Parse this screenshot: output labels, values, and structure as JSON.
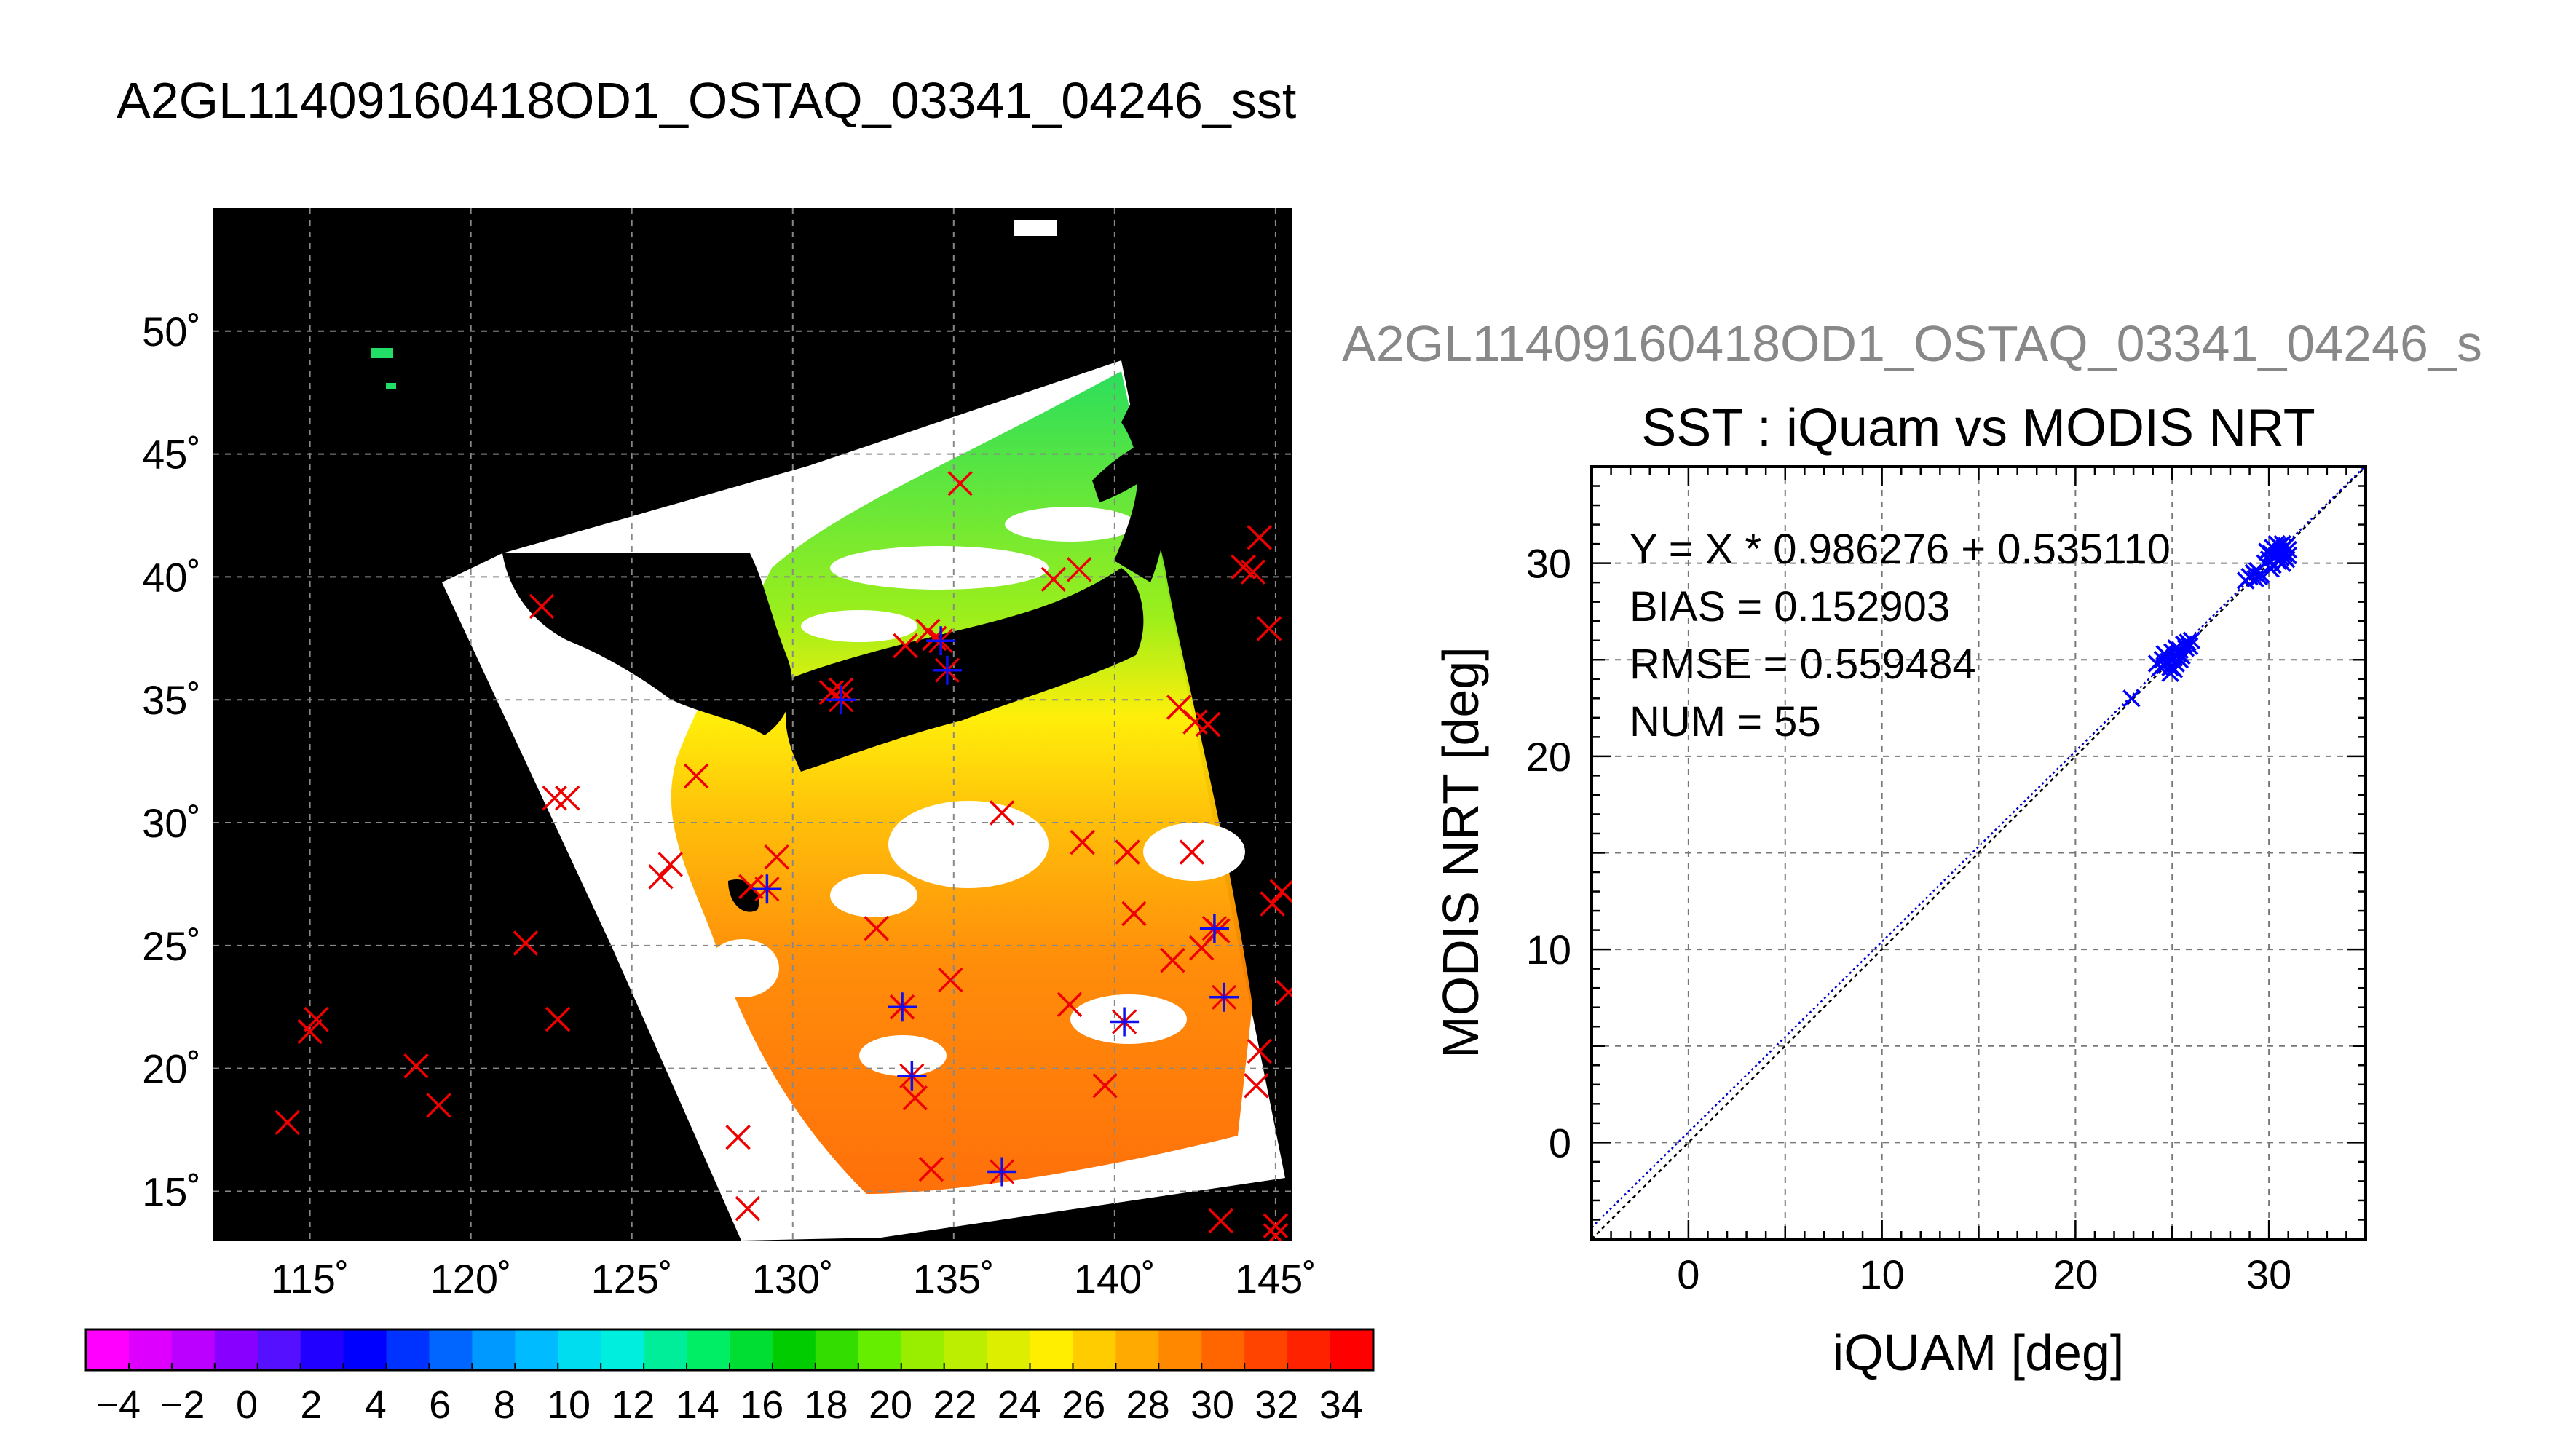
{
  "figure": {
    "title": "A2GL11409160418OD1_OSTAQ_03341_04246_sst",
    "subtitle": "A2GL11409160418OD1_OSTAQ_03341_04246_s"
  },
  "map": {
    "lon_ticks": [
      115,
      120,
      125,
      130,
      135,
      140,
      145
    ],
    "lat_ticks": [
      50,
      45,
      40,
      35,
      30,
      25,
      20,
      15
    ],
    "lon_labels": [
      "115˚",
      "120˚",
      "125˚",
      "130˚",
      "135˚",
      "140˚",
      "145˚"
    ],
    "lat_labels": [
      "50˚",
      "45˚",
      "40˚",
      "35˚",
      "30˚",
      "25˚",
      "20˚",
      "15˚"
    ],
    "lon_range": [
      112,
      145.5
    ],
    "lat_range": [
      13,
      55
    ],
    "background": "#000000",
    "swath_color": "#ffffff",
    "ocean_fill_gradient": [
      "#33ee33",
      "#99ee11",
      "#ffee00",
      "#ffbb00",
      "#ff8800",
      "#ff6600"
    ],
    "matchups_red": [
      [
        114.3,
        17.8
      ],
      [
        115.0,
        21.5
      ],
      [
        115.2,
        22.0
      ],
      [
        118.3,
        20.1
      ],
      [
        119.0,
        18.5
      ],
      [
        121.7,
        25.1
      ],
      [
        122.7,
        22.0
      ],
      [
        122.6,
        31.0
      ],
      [
        123.0,
        31.0
      ],
      [
        125.9,
        27.8
      ],
      [
        126.2,
        28.3
      ],
      [
        128.3,
        17.2
      ],
      [
        128.6,
        14.3
      ],
      [
        128.7,
        27.4
      ],
      [
        129.5,
        28.6
      ],
      [
        131.2,
        35.3
      ],
      [
        131.5,
        35.4
      ],
      [
        132.6,
        25.7
      ],
      [
        133.4,
        22.5
      ],
      [
        133.5,
        37.2
      ],
      [
        133.8,
        18.8
      ],
      [
        134.2,
        37.8
      ],
      [
        134.4,
        37.5
      ],
      [
        134.9,
        23.6
      ],
      [
        134.3,
        15.9
      ],
      [
        135.2,
        43.8
      ],
      [
        136.5,
        30.4
      ],
      [
        138.1,
        39.9
      ],
      [
        138.6,
        22.6
      ],
      [
        138.9,
        40.3
      ],
      [
        139.0,
        29.2
      ],
      [
        139.7,
        19.3
      ],
      [
        140.4,
        28.8
      ],
      [
        140.6,
        26.3
      ],
      [
        141.8,
        24.4
      ],
      [
        142.0,
        34.7
      ],
      [
        142.4,
        28.8
      ],
      [
        142.7,
        24.9
      ],
      [
        143.2,
        25.6
      ],
      [
        143.3,
        13.8
      ],
      [
        144.0,
        40.4
      ],
      [
        144.3,
        40.2
      ],
      [
        144.5,
        41.6
      ],
      [
        144.8,
        37.9
      ],
      [
        144.9,
        26.7
      ],
      [
        145.2,
        27.2
      ],
      [
        145.4,
        23.1
      ],
      [
        144.4,
        19.3
      ],
      [
        144.5,
        20.7
      ],
      [
        145.0,
        13.6
      ],
      [
        145.0,
        13.2
      ],
      [
        142.5,
        34.1
      ],
      [
        142.9,
        34.0
      ],
      [
        127.0,
        31.9
      ],
      [
        122.2,
        38.8
      ]
    ],
    "matchups_blue": [
      [
        129.2,
        27.3
      ],
      [
        131.5,
        35.0
      ],
      [
        134.8,
        36.2
      ],
      [
        134.6,
        37.4
      ],
      [
        133.4,
        22.5
      ],
      [
        133.7,
        19.7
      ],
      [
        136.5,
        15.8
      ],
      [
        140.3,
        21.9
      ],
      [
        143.1,
        25.7
      ],
      [
        143.4,
        22.9
      ]
    ]
  },
  "colorbar": {
    "tick_labels": [
      "−4",
      "−2",
      "0",
      "2",
      "4",
      "6",
      "8",
      "10",
      "12",
      "14",
      "16",
      "18",
      "20",
      "22",
      "24",
      "26",
      "28",
      "30",
      "32",
      "34"
    ],
    "range": [
      -5,
      35
    ],
    "colors": [
      "#ff00ff",
      "#dd00ff",
      "#bb00ff",
      "#8800ff",
      "#5511ff",
      "#2200ff",
      "#0000ff",
      "#0033ff",
      "#0066ff",
      "#0099ff",
      "#00bbff",
      "#00ddee",
      "#00eedd",
      "#00ee99",
      "#00ee66",
      "#00dd33",
      "#00cc00",
      "#33dd00",
      "#66ee00",
      "#99ee00",
      "#bbee00",
      "#ddee00",
      "#ffee00",
      "#ffcc00",
      "#ffaa00",
      "#ff8800",
      "#ff6600",
      "#ff4400",
      "#ff2200",
      "#ff0000"
    ]
  },
  "chart_data": {
    "type": "scatter",
    "title": "SST : iQuam vs MODIS NRT",
    "xlabel": "iQUAM [deg]",
    "ylabel": "MODIS NRT [deg]",
    "xlim": [
      -5,
      35
    ],
    "ylim": [
      -5,
      35
    ],
    "x_ticks": [
      0,
      10,
      20,
      30
    ],
    "y_ticks": [
      0,
      10,
      20,
      30
    ],
    "grid": true,
    "stats": {
      "fit": "Y = X * 0.986276 + 0.535110",
      "bias": "BIAS = 0.152903",
      "rmse": "RMSE = 0.559484",
      "num": "NUM = 55"
    },
    "fit_slope": 0.986276,
    "fit_intercept": 0.53511,
    "identity_color": "#000000",
    "fit_color": "#0000cc",
    "series": [
      {
        "color": "#0000ff",
        "x": [
          22.9,
          24.2,
          24.4,
          24.5,
          24.6,
          24.7,
          24.8,
          24.9,
          25.0,
          25.0,
          25.1,
          25.2,
          25.2,
          25.3,
          25.4,
          25.5,
          25.6,
          25.7,
          25.8,
          25.9,
          26.0,
          24.9,
          25.1,
          25.4,
          24.6,
          28.8,
          29.0,
          29.2,
          29.3,
          29.4,
          29.6,
          29.8,
          30.0,
          30.1,
          30.2,
          30.3,
          30.4,
          30.5,
          30.5,
          30.6,
          30.6,
          30.7,
          30.8,
          30.8,
          30.9,
          31.0,
          31.0,
          30.3,
          30.1,
          30.7,
          29.9,
          30.4,
          30.9,
          29.5,
          30.2
        ],
        "y": [
          23.0,
          24.8,
          24.6,
          25.0,
          24.7,
          25.2,
          24.9,
          24.6,
          25.0,
          25.4,
          25.1,
          25.6,
          24.8,
          25.3,
          25.5,
          25.2,
          25.8,
          25.6,
          25.9,
          25.7,
          26.0,
          24.3,
          24.5,
          25.0,
          25.3,
          29.1,
          29.3,
          29.5,
          29.2,
          29.6,
          29.4,
          30.0,
          30.2,
          30.5,
          29.9,
          30.7,
          30.4,
          30.9,
          30.1,
          30.6,
          30.3,
          31.0,
          30.8,
          30.5,
          30.9,
          30.7,
          30.4,
          30.3,
          29.7,
          30.0,
          30.6,
          31.0,
          30.2,
          29.3,
          30.8
        ]
      }
    ]
  }
}
